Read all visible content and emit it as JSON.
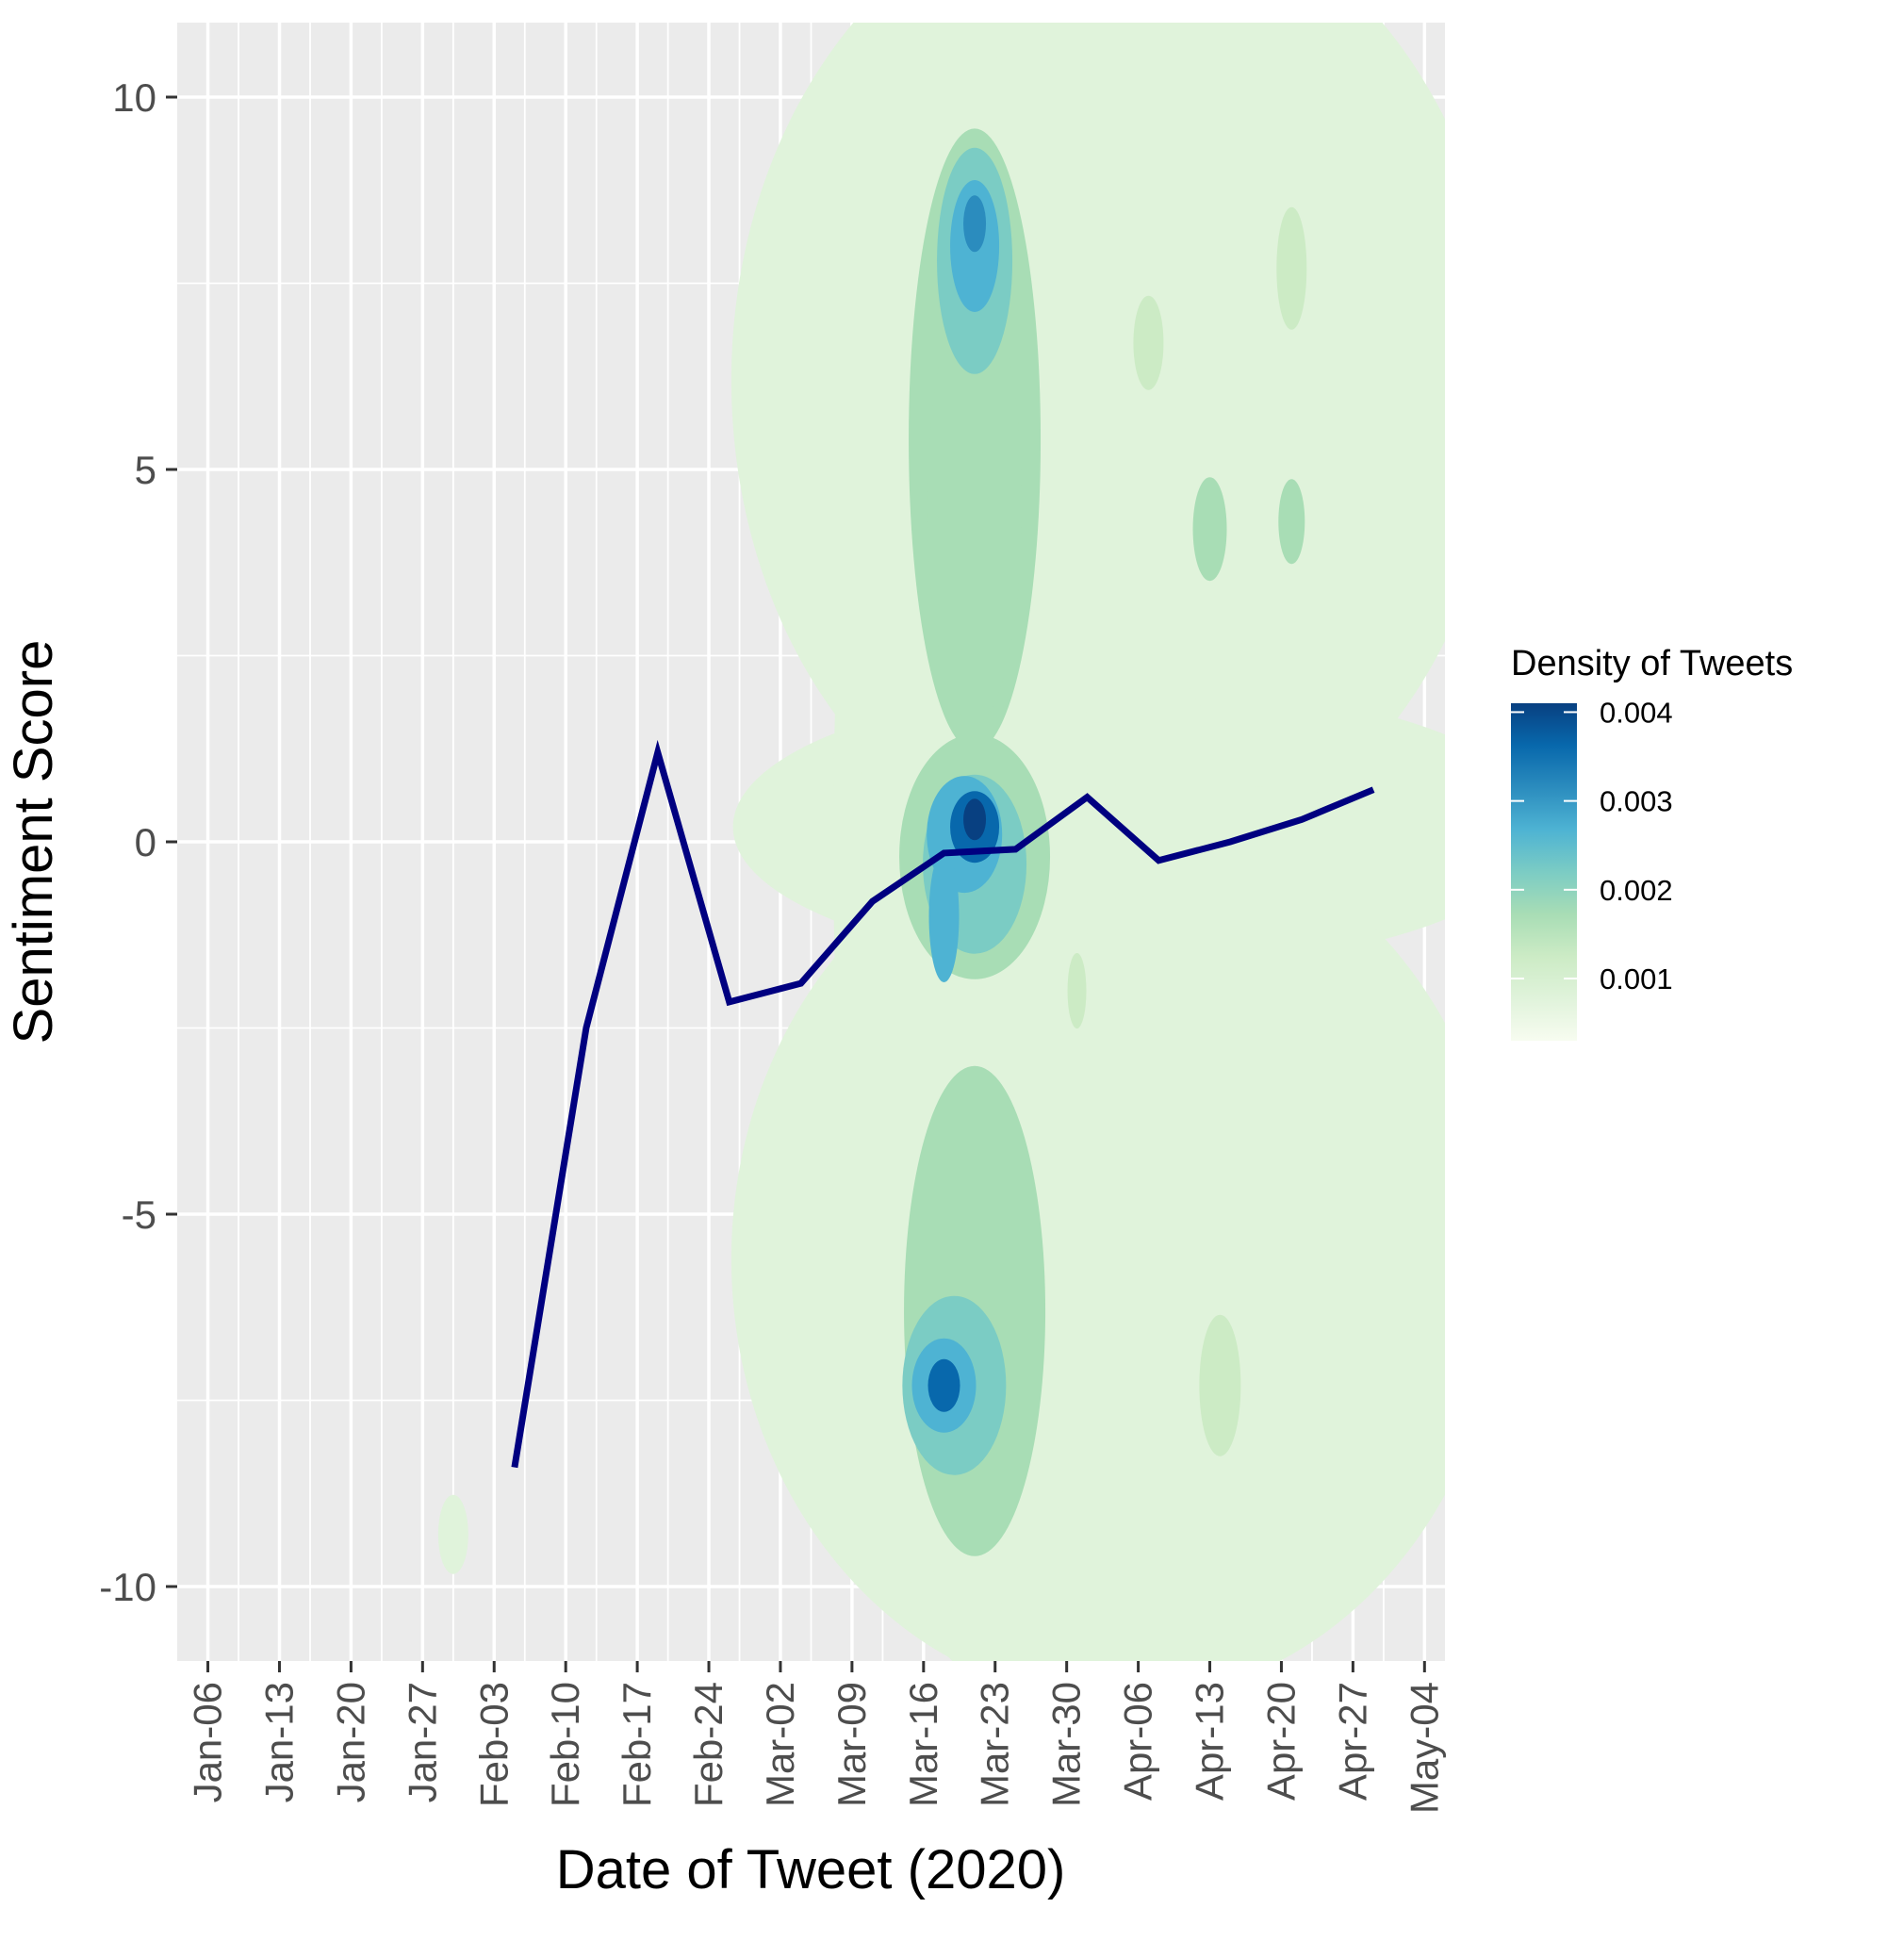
{
  "chart_data": {
    "type": "line",
    "title": "",
    "xlabel": "Date of Tweet (2020)",
    "ylabel": "Sentiment Score",
    "x_ticks": [
      "Jan-06",
      "Jan-13",
      "Jan-20",
      "Jan-27",
      "Feb-03",
      "Feb-10",
      "Feb-17",
      "Feb-24",
      "Mar-02",
      "Mar-09",
      "Mar-16",
      "Mar-23",
      "Mar-30",
      "Apr-06",
      "Apr-13",
      "Apr-20",
      "Apr-27",
      "May-04"
    ],
    "x_tick_dates": [
      "2020-01-06",
      "2020-01-13",
      "2020-01-20",
      "2020-01-27",
      "2020-02-03",
      "2020-02-10",
      "2020-02-17",
      "2020-02-24",
      "2020-03-02",
      "2020-03-09",
      "2020-03-16",
      "2020-03-23",
      "2020-03-30",
      "2020-04-06",
      "2020-04-13",
      "2020-04-20",
      "2020-04-27",
      "2020-05-04"
    ],
    "xlim": [
      "2020-01-03",
      "2020-05-06"
    ],
    "y_ticks": [
      10,
      5,
      0,
      -5,
      -10
    ],
    "ylim": [
      -11,
      11
    ],
    "grid": true,
    "legend": {
      "title": "Density of Tweets",
      "position": "right",
      "ticks": [
        "0.004",
        "0.003",
        "0.002",
        "0.001"
      ],
      "tick_values": [
        0.004,
        0.003,
        0.002,
        0.001
      ],
      "range": [
        0.0003,
        0.0041
      ],
      "colors": [
        "#f7fcf0",
        "#e0f3db",
        "#ccebc5",
        "#a8ddb5",
        "#7bccc4",
        "#4eb3d3",
        "#2b8cbe",
        "#0868ac",
        "#084081"
      ]
    },
    "series": [
      {
        "color": "#000080",
        "x": [
          "2020-02-05",
          "2020-02-12",
          "2020-02-19",
          "2020-02-26",
          "2020-03-04",
          "2020-03-11",
          "2020-03-18",
          "2020-03-25",
          "2020-04-01",
          "2020-04-08",
          "2020-04-15",
          "2020-04-22",
          "2020-04-29"
        ],
        "y": [
          -8.4,
          -2.5,
          1.2,
          -2.15,
          -1.9,
          -0.8,
          -0.15,
          -0.1,
          0.6,
          -0.25,
          0.0,
          0.3,
          0.7
        ]
      }
    ],
    "density_peaks": [
      {
        "date": "2020-03-21",
        "sentiment": 8.3,
        "density": 0.0031
      },
      {
        "date": "2020-03-21",
        "sentiment": 0.2,
        "density": 0.0041
      },
      {
        "date": "2020-03-18",
        "sentiment": -7.3,
        "density": 0.0036
      },
      {
        "date": "2020-03-18",
        "sentiment": 5.2,
        "density": 0.0022
      },
      {
        "date": "2020-04-13",
        "sentiment": 4.2,
        "density": 0.0016
      },
      {
        "date": "2020-04-07",
        "sentiment": 6.7,
        "density": 0.0013
      },
      {
        "date": "2020-04-21",
        "sentiment": 7.7,
        "density": 0.0013
      },
      {
        "date": "2020-01-30",
        "sentiment": -9.3,
        "density": 0.0005
      }
    ]
  }
}
